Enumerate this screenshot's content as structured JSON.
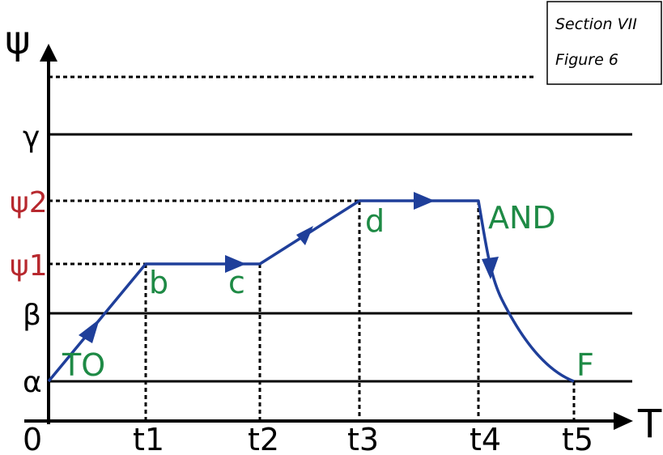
{
  "note": {
    "line1": "Section VII",
    "line2": "Figure 6"
  },
  "axes": {
    "y_name": "ψ",
    "x_name": "T",
    "origin": "0"
  },
  "y_levels": {
    "alpha": "α",
    "beta": "β",
    "psi1": "ψ1",
    "psi2": "ψ2",
    "gamma": "γ"
  },
  "x_ticks": {
    "t1": "t1",
    "t2": "t2",
    "t3": "t3",
    "t4": "t4",
    "t5": "t5"
  },
  "points": {
    "start": "TO",
    "b": "b",
    "c": "c",
    "d": "d",
    "descent": "AND",
    "end": "F"
  },
  "colors": {
    "curve": "#1f3f9a",
    "point_labels": "#1e8a45",
    "psi_labels": "#b7282e",
    "lines": "#000000"
  }
}
